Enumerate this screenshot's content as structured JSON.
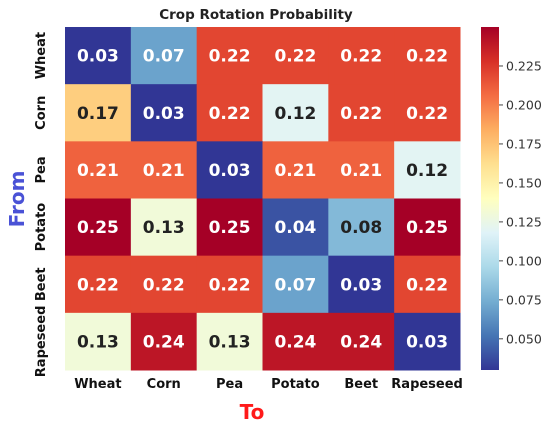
{
  "chart_data": {
    "type": "heatmap",
    "title": "Crop Rotation Probability",
    "xlabel": "To",
    "ylabel": "From",
    "x_categories": [
      "Wheat",
      "Corn",
      "Pea",
      "Potato",
      "Beet",
      "Rapeseed"
    ],
    "y_categories": [
      "Wheat",
      "Corn",
      "Pea",
      "Potato",
      "Beet",
      "Rapeseed"
    ],
    "values": [
      [
        0.03,
        0.07,
        0.22,
        0.22,
        0.22,
        0.22
      ],
      [
        0.17,
        0.03,
        0.22,
        0.12,
        0.22,
        0.22
      ],
      [
        0.21,
        0.21,
        0.03,
        0.21,
        0.21,
        0.12
      ],
      [
        0.25,
        0.13,
        0.25,
        0.04,
        0.08,
        0.25
      ],
      [
        0.22,
        0.22,
        0.22,
        0.07,
        0.03,
        0.22
      ],
      [
        0.13,
        0.24,
        0.13,
        0.24,
        0.24,
        0.03
      ]
    ],
    "colormap": "RdYlBu_r",
    "color_range": [
      0.03,
      0.25
    ],
    "colorbar_ticks": [
      "0.050",
      "0.075",
      "0.100",
      "0.125",
      "0.150",
      "0.175",
      "0.200",
      "0.225"
    ],
    "colorbar_tick_values": [
      0.05,
      0.075,
      0.1,
      0.125,
      0.15,
      0.175,
      0.2,
      0.225
    ],
    "axis_label_colors": {
      "x": "#ff1a1a",
      "y": "#4a52d6"
    }
  }
}
